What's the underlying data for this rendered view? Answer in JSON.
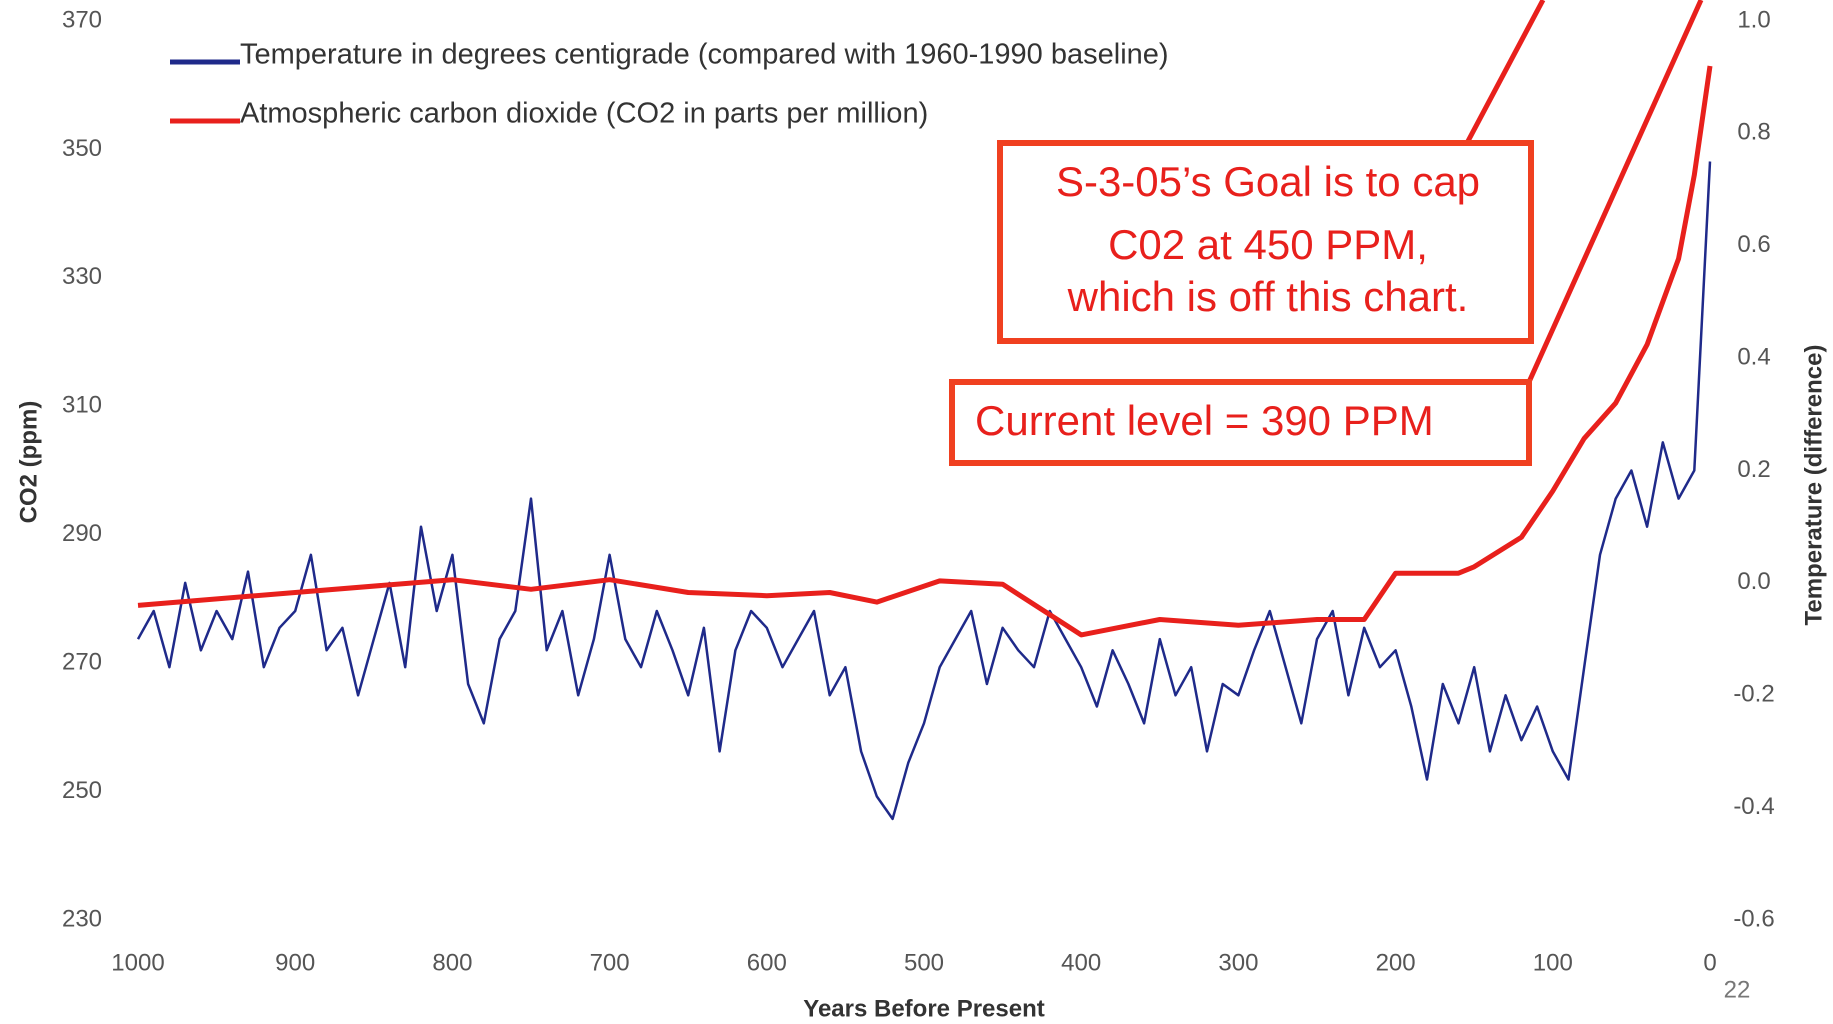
{
  "chart_data": {
    "type": "line",
    "x_label": "Years Before Present",
    "y_label": "CO2 (ppm)",
    "y2_label": "Temperature (difference)",
    "xlim": [
      1000,
      0
    ],
    "xticks": [
      1000,
      900,
      800,
      700,
      600,
      500,
      400,
      300,
      200,
      100,
      0
    ],
    "ylim": [
      230,
      370
    ],
    "yticks": [
      230,
      250,
      270,
      290,
      310,
      330,
      350,
      370
    ],
    "y2lim": [
      -0.6,
      1.0
    ],
    "y2ticks": [
      -0.6,
      -0.4,
      -0.2,
      {
        "value": 0,
        "label": "0.0"
      },
      0.2,
      0.4,
      0.6,
      0.8,
      {
        "value": 1,
        "label": "1.0"
      }
    ],
    "series": [
      {
        "name": "Temperature in degrees centigrade (compared with 1960-1990 baseline)",
        "color": "#1f2a8a",
        "axis": "y2",
        "x": [
          1000,
          990,
          980,
          970,
          960,
          950,
          940,
          930,
          920,
          910,
          900,
          890,
          880,
          870,
          860,
          850,
          840,
          830,
          820,
          810,
          800,
          790,
          780,
          770,
          760,
          750,
          740,
          730,
          720,
          710,
          700,
          690,
          680,
          670,
          660,
          650,
          640,
          630,
          620,
          610,
          600,
          590,
          580,
          570,
          560,
          550,
          540,
          530,
          520,
          510,
          500,
          490,
          480,
          470,
          460,
          450,
          440,
          430,
          420,
          410,
          400,
          390,
          380,
          370,
          360,
          350,
          340,
          330,
          320,
          310,
          300,
          290,
          280,
          270,
          260,
          250,
          240,
          230,
          220,
          210,
          200,
          190,
          180,
          170,
          160,
          150,
          140,
          130,
          120,
          110,
          100,
          90,
          80,
          70,
          60,
          50,
          40,
          30,
          20,
          10,
          0
        ],
        "values": [
          -0.1,
          -0.05,
          -0.15,
          0.0,
          -0.12,
          -0.05,
          -0.1,
          0.02,
          -0.15,
          -0.08,
          -0.05,
          0.05,
          -0.12,
          -0.08,
          -0.2,
          -0.1,
          0.0,
          -0.15,
          0.1,
          -0.05,
          0.05,
          -0.18,
          -0.25,
          -0.1,
          -0.05,
          0.15,
          -0.12,
          -0.05,
          -0.2,
          -0.1,
          0.05,
          -0.1,
          -0.15,
          -0.05,
          -0.12,
          -0.2,
          -0.08,
          -0.3,
          -0.12,
          -0.05,
          -0.08,
          -0.15,
          -0.1,
          -0.05,
          -0.2,
          -0.15,
          -0.3,
          -0.38,
          -0.42,
          -0.32,
          -0.25,
          -0.15,
          -0.1,
          -0.05,
          -0.18,
          -0.08,
          -0.12,
          -0.15,
          -0.05,
          -0.1,
          -0.15,
          -0.22,
          -0.12,
          -0.18,
          -0.25,
          -0.1,
          -0.2,
          -0.15,
          -0.3,
          -0.18,
          -0.2,
          -0.12,
          -0.05,
          -0.15,
          -0.25,
          -0.1,
          -0.05,
          -0.2,
          -0.08,
          -0.15,
          -0.12,
          -0.22,
          -0.35,
          -0.18,
          -0.25,
          -0.15,
          -0.3,
          -0.2,
          -0.28,
          -0.22,
          -0.3,
          -0.35,
          -0.15,
          0.05,
          0.15,
          0.2,
          0.1,
          0.25,
          0.15,
          0.2,
          0.75
        ]
      },
      {
        "name": "Atmospheric carbon dioxide (CO2 in parts per million)",
        "color": "#e8201c",
        "x": [
          1000,
          900,
          800,
          750,
          700,
          650,
          600,
          560,
          530,
          490,
          450,
          400,
          350,
          300,
          250,
          220,
          200,
          160,
          150,
          120,
          100,
          80,
          60,
          40,
          20,
          10,
          0
        ],
        "values": [
          279,
          281,
          283,
          281.5,
          283,
          281,
          280.5,
          281,
          279.5,
          282.8,
          282.3,
          274.4,
          276.8,
          275.9,
          276.8,
          276.8,
          284,
          284,
          285,
          289.6,
          296.8,
          305,
          310.5,
          319.6,
          333,
          346,
          363
        ]
      }
    ],
    "annotations": [
      {
        "lines": [
          "S-3-05’s Goal is to cap",
          "C02 at 450 PPM,",
          "which is off this chart."
        ]
      },
      {
        "lines": [
          "Current level = 390 PPM"
        ]
      }
    ]
  },
  "page_number": "22"
}
